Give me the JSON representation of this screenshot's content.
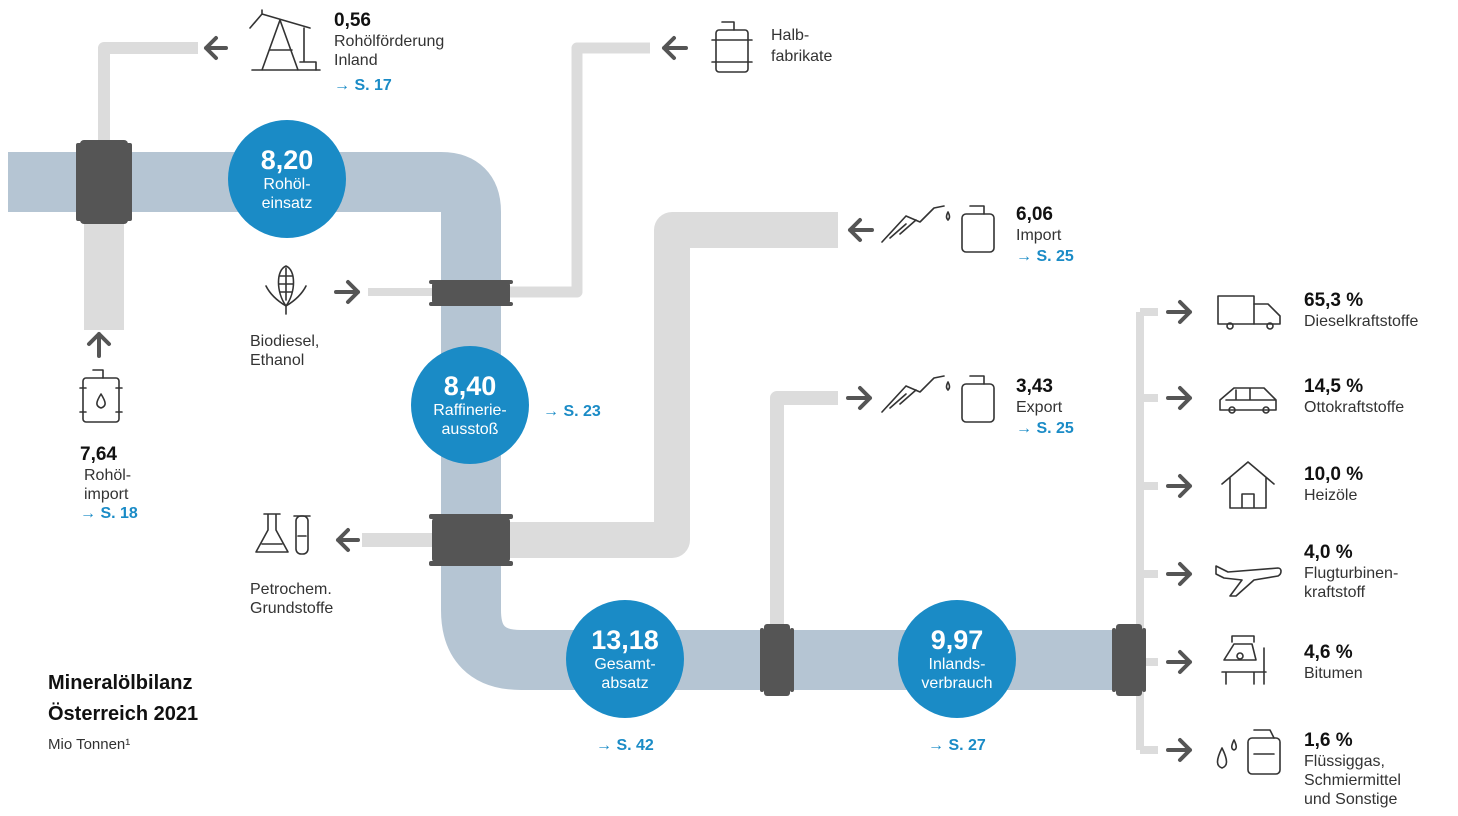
{
  "title": {
    "line1": "Mineralölbilanz",
    "line2": "Österreich 2021",
    "unit": "Mio Tonnen¹"
  },
  "bubbles": {
    "rohoel": {
      "value": "8,20",
      "label1": "Rohöl-",
      "label2": "einsatz"
    },
    "raffinerie": {
      "value": "8,40",
      "label1": "Raffinerie-",
      "label2": "ausstoß",
      "ref": "→ S. 23"
    },
    "gesamt": {
      "value": "13,18",
      "label1": "Gesamt-",
      "label2": "absatz",
      "ref": "→ S. 42"
    },
    "inland": {
      "value": "9,97",
      "label1": "Inlands-",
      "label2": "verbrauch",
      "ref": "→ S. 27"
    }
  },
  "inputs": {
    "foerderung": {
      "value": "0,56",
      "label1": "Rohölförderung",
      "label2": "Inland",
      "ref": "→ S. 17"
    },
    "import": {
      "value": "7,64",
      "label1": "Rohöl-",
      "label2": "import",
      "ref": "→ S. 18"
    },
    "halb": {
      "label1": "Halb-",
      "label2": "fabrikate"
    },
    "bio": {
      "label1": "Biodiesel,",
      "label2": "Ethanol"
    },
    "petro": {
      "label1": "Petrochem.",
      "label2": "Grundstoffe"
    },
    "prodimport": {
      "value": "6,06",
      "label": "Import",
      "ref": "→ S. 25"
    },
    "export": {
      "value": "3,43",
      "label": "Export",
      "ref": "→ S. 25"
    }
  },
  "consumption": [
    {
      "value": "65,3 %",
      "label1": "Dieselkraftstoffe",
      "label2": "",
      "label3": "",
      "icon": "truck-icon"
    },
    {
      "value": "14,5 %",
      "label1": "Ottokraftstoffe",
      "label2": "",
      "label3": "",
      "icon": "car-icon"
    },
    {
      "value": "10,0 %",
      "label1": "Heizöle",
      "label2": "",
      "label3": "",
      "icon": "house-icon"
    },
    {
      "value": "4,0 %",
      "label1": "Flugturbinen-",
      "label2": "kraftstoff",
      "label3": "",
      "icon": "airplane-icon"
    },
    {
      "value": "4,6 %",
      "label1": "Bitumen",
      "label2": "",
      "label3": "",
      "icon": "cement-mixer-icon"
    },
    {
      "value": "1,6 %",
      "label1": "Flüssiggas,",
      "label2": "Schmiermittel",
      "label3": "und Sonstige",
      "icon": "canister-drops-icon"
    }
  ],
  "colors": {
    "main_pipe": "#b5c5d3",
    "side_pipe": "#dcdcdc",
    "coupling": "#555555",
    "bubble": "#1a8bc6",
    "arrow": "#555555",
    "ref": "#1a8bc6"
  }
}
